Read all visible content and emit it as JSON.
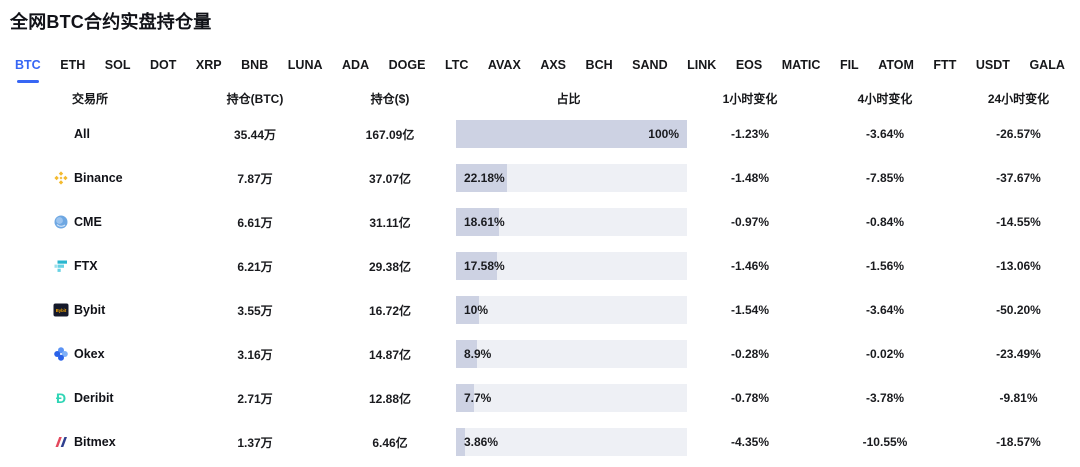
{
  "page": {
    "title": "全网BTC合约实盘持仓量"
  },
  "colors": {
    "accent": "#3766f4",
    "bar_fill": "#cdd2e3",
    "bar_bg": "#eef0f5",
    "text": "#16171a",
    "binance_gold": "#f3ba2f",
    "cme_blue": "#6ea7e2",
    "ftx_teal": "#29b6cf",
    "bybit_navy": "#15192a",
    "bybit_yellow": "#f7a600",
    "okex_blue": "#2a62e9",
    "deribit_teal": "#2fd5b5",
    "bitmex_red": "#e4485c",
    "bitmex_blue": "#2e3f8f"
  },
  "tabs": [
    {
      "label": "BTC",
      "active": true
    },
    {
      "label": "ETH",
      "active": false
    },
    {
      "label": "SOL",
      "active": false
    },
    {
      "label": "DOT",
      "active": false
    },
    {
      "label": "XRP",
      "active": false
    },
    {
      "label": "BNB",
      "active": false
    },
    {
      "label": "LUNA",
      "active": false
    },
    {
      "label": "ADA",
      "active": false
    },
    {
      "label": "DOGE",
      "active": false
    },
    {
      "label": "LTC",
      "active": false
    },
    {
      "label": "AVAX",
      "active": false
    },
    {
      "label": "AXS",
      "active": false
    },
    {
      "label": "BCH",
      "active": false
    },
    {
      "label": "SAND",
      "active": false
    },
    {
      "label": "LINK",
      "active": false
    },
    {
      "label": "EOS",
      "active": false
    },
    {
      "label": "MATIC",
      "active": false
    },
    {
      "label": "FIL",
      "active": false
    },
    {
      "label": "ATOM",
      "active": false
    },
    {
      "label": "FTT",
      "active": false
    },
    {
      "label": "USDT",
      "active": false
    },
    {
      "label": "GALA",
      "active": false
    }
  ],
  "table": {
    "headers": [
      "交易所",
      "持仓(BTC)",
      "持仓($)",
      "占比",
      "1小时变化",
      "4小时变化",
      "24小时变化"
    ],
    "rows": [
      {
        "exchange": "All",
        "icon": null,
        "btc": "35.44万",
        "usd": "167.09亿",
        "share": "100%",
        "share_pct": 100,
        "h1": "-1.23%",
        "h4": "-3.64%",
        "h24": "-26.57%"
      },
      {
        "exchange": "Binance",
        "icon": "binance-icon",
        "btc": "7.87万",
        "usd": "37.07亿",
        "share": "22.18%",
        "share_pct": 22.18,
        "h1": "-1.48%",
        "h4": "-7.85%",
        "h24": "-37.67%"
      },
      {
        "exchange": "CME",
        "icon": "cme-icon",
        "btc": "6.61万",
        "usd": "31.11亿",
        "share": "18.61%",
        "share_pct": 18.61,
        "h1": "-0.97%",
        "h4": "-0.84%",
        "h24": "-14.55%"
      },
      {
        "exchange": "FTX",
        "icon": "ftx-icon",
        "btc": "6.21万",
        "usd": "29.38亿",
        "share": "17.58%",
        "share_pct": 17.58,
        "h1": "-1.46%",
        "h4": "-1.56%",
        "h24": "-13.06%"
      },
      {
        "exchange": "Bybit",
        "icon": "bybit-icon",
        "btc": "3.55万",
        "usd": "16.72亿",
        "share": "10%",
        "share_pct": 10,
        "h1": "-1.54%",
        "h4": "-3.64%",
        "h24": "-50.20%"
      },
      {
        "exchange": "Okex",
        "icon": "okex-icon",
        "btc": "3.16万",
        "usd": "14.87亿",
        "share": "8.9%",
        "share_pct": 8.9,
        "h1": "-0.28%",
        "h4": "-0.02%",
        "h24": "-23.49%"
      },
      {
        "exchange": "Deribit",
        "icon": "deribit-icon",
        "btc": "2.71万",
        "usd": "12.88亿",
        "share": "7.7%",
        "share_pct": 7.7,
        "h1": "-0.78%",
        "h4": "-3.78%",
        "h24": "-9.81%"
      },
      {
        "exchange": "Bitmex",
        "icon": "bitmex-icon",
        "btc": "1.37万",
        "usd": "6.46亿",
        "share": "3.86%",
        "share_pct": 3.86,
        "h1": "-4.35%",
        "h4": "-10.55%",
        "h24": "-18.57%"
      }
    ]
  }
}
